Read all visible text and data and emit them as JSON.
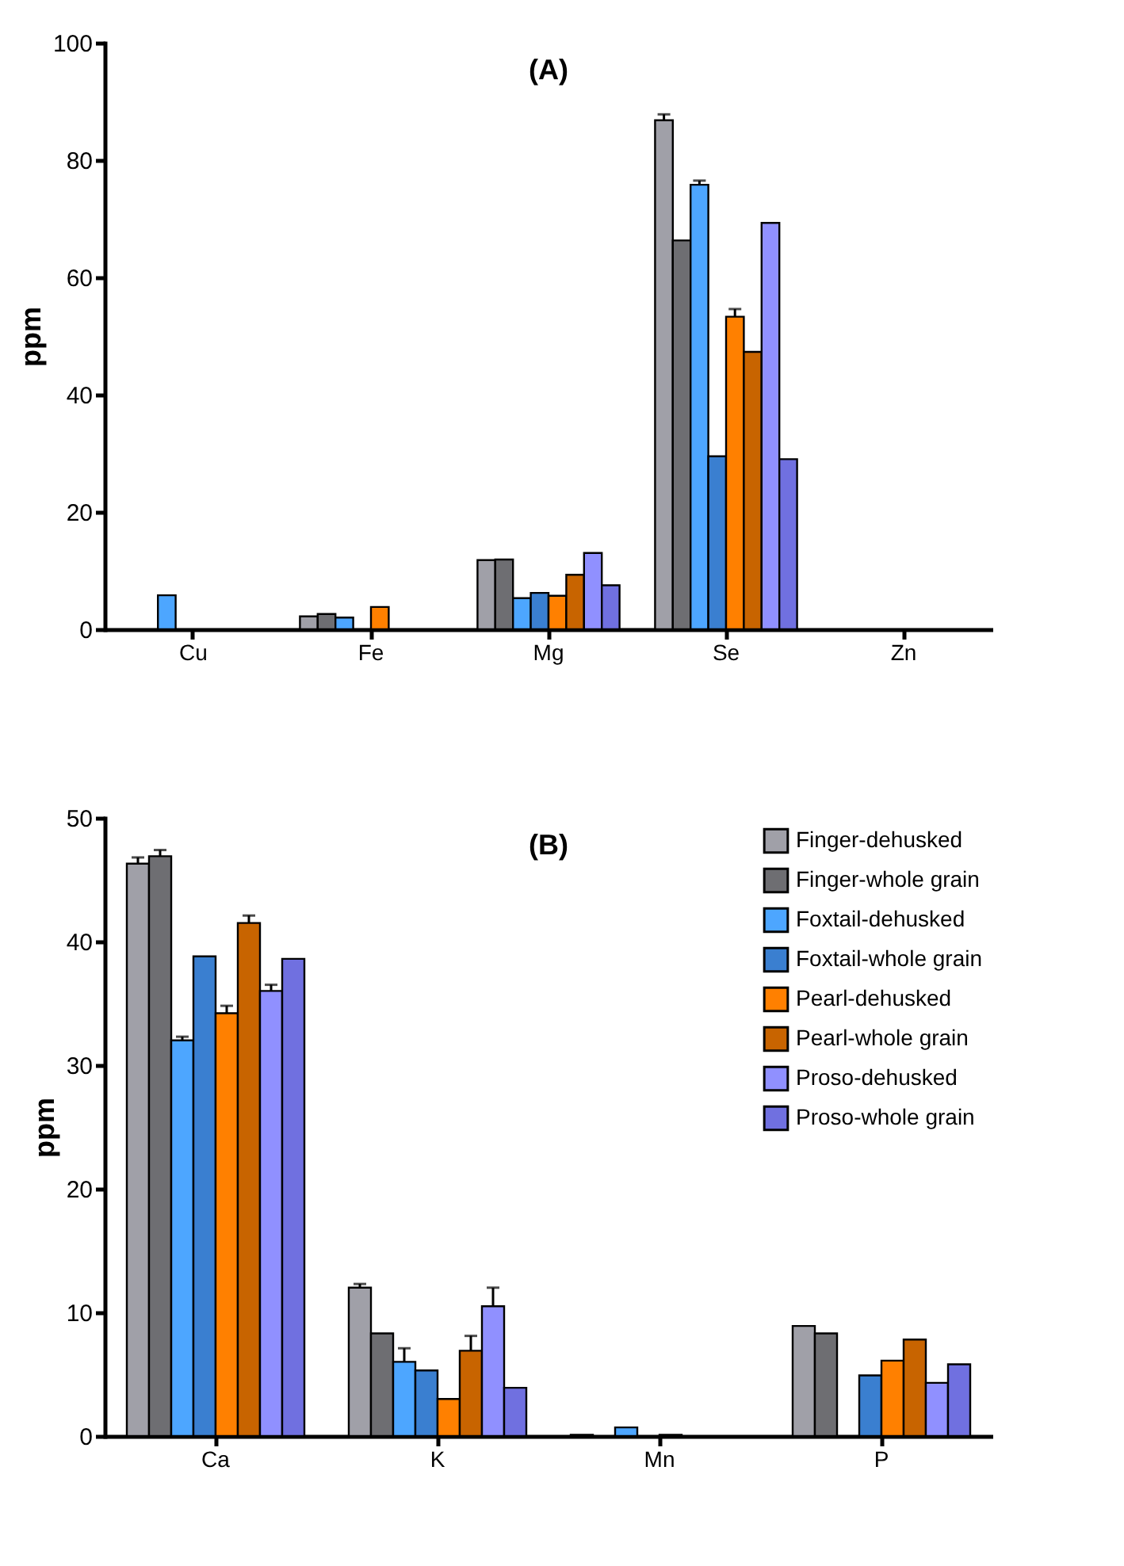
{
  "chart_data": [
    {
      "type": "bar",
      "title": "(A)",
      "ylabel": "ppm",
      "categories": [
        "Cu",
        "Fe",
        "Mg",
        "Se",
        "Zn"
      ],
      "ylim": [
        0,
        100
      ],
      "yticks": [
        0,
        20,
        40,
        60,
        80,
        100
      ],
      "grid": false,
      "legend": false,
      "series": [
        {
          "color": "#a0a0a8",
          "values": [
            null,
            2.2,
            11.8,
            86.8,
            null
          ],
          "errors": [
            null,
            null,
            null,
            1,
            null
          ]
        },
        {
          "color": "#6e6e72",
          "values": [
            null,
            2.6,
            11.9,
            66.3,
            null
          ]
        },
        {
          "color": "#4da6ff",
          "values": [
            5.8,
            2.0,
            5.3,
            75.8,
            null
          ],
          "errors": [
            null,
            null,
            null,
            0.7,
            null
          ]
        },
        {
          "color": "#3a7fd0",
          "values": [
            null,
            null,
            6.2,
            29.5,
            null
          ]
        },
        {
          "color": "#ff8000",
          "values": [
            null,
            3.8,
            5.7,
            53.3,
            null
          ],
          "errors": [
            null,
            null,
            null,
            1.3,
            null
          ]
        },
        {
          "color": "#c86400",
          "values": [
            null,
            null,
            9.3,
            47.3,
            null
          ]
        },
        {
          "color": "#9090ff",
          "values": [
            null,
            null,
            13.0,
            69.3,
            null
          ]
        },
        {
          "color": "#7070e0",
          "values": [
            null,
            null,
            7.5,
            29.0,
            null
          ]
        }
      ]
    },
    {
      "type": "bar",
      "title": "(B)",
      "ylabel": "ppm",
      "categories": [
        "Ca",
        "K",
        "Mn",
        "P"
      ],
      "ylim": [
        0,
        50
      ],
      "yticks": [
        0,
        10,
        20,
        30,
        40,
        50
      ],
      "grid": false,
      "legend": "top right",
      "series": [
        {
          "name": "Finger-dehusked",
          "color": "#a0a0a8",
          "values": [
            46.3,
            12.0,
            0.1,
            8.9
          ],
          "errors": [
            0.5,
            0.3,
            null,
            null
          ]
        },
        {
          "name": "Finger-whole grain",
          "color": "#6e6e72",
          "values": [
            46.9,
            8.3,
            null,
            8.3
          ],
          "errors": [
            0.5,
            null,
            null,
            null
          ]
        },
        {
          "name": "Foxtail-dehusked",
          "color": "#4da6ff",
          "values": [
            32.0,
            6.0,
            0.7,
            null
          ],
          "errors": [
            0.3,
            1.1,
            null,
            null
          ]
        },
        {
          "name": "Foxtail-whole grain",
          "color": "#3a7fd0",
          "values": [
            38.8,
            5.3,
            null,
            4.9
          ]
        },
        {
          "name": "Pearl-dehusked",
          "color": "#ff8000",
          "values": [
            34.2,
            3.0,
            0.1,
            6.1
          ],
          "errors": [
            0.6,
            null,
            null,
            null
          ]
        },
        {
          "name": "Pearl-whole grain",
          "color": "#c86400",
          "values": [
            41.5,
            6.9,
            null,
            7.8
          ],
          "errors": [
            0.6,
            1.2,
            null,
            null
          ]
        },
        {
          "name": "Proso-dehusked",
          "color": "#9090ff",
          "values": [
            36.0,
            10.5,
            null,
            4.3
          ],
          "errors": [
            0.5,
            1.5,
            null,
            null
          ]
        },
        {
          "name": "Proso-whole grain",
          "color": "#7070e0",
          "values": [
            38.6,
            3.9,
            null,
            5.8
          ]
        }
      ]
    }
  ]
}
